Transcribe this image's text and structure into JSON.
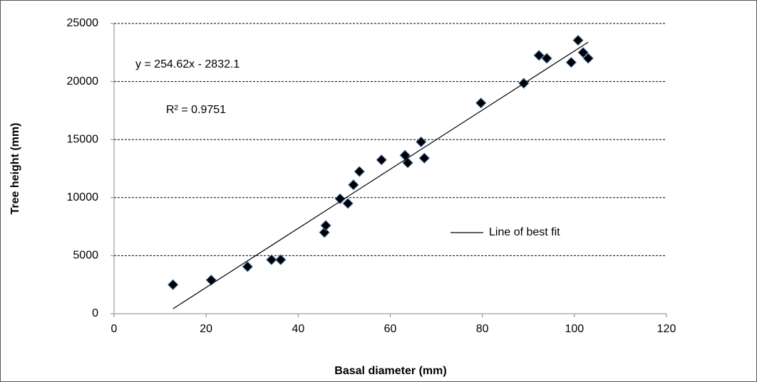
{
  "chart_data": {
    "type": "scatter",
    "xlabel": "Basal diameter (mm)",
    "ylabel": "Tree height (mm)",
    "annotations": [
      "y = 254.62x - 2832.1",
      "R² = 0.9751"
    ],
    "xlim": [
      0,
      120
    ],
    "xticks": [
      0,
      20,
      40,
      60,
      80,
      100,
      120
    ],
    "ylim": [
      0,
      25000
    ],
    "yticks": [
      0,
      5000,
      10000,
      15000,
      20000,
      25000
    ],
    "grid": true,
    "legend": "right",
    "series": [
      {
        "type": "scatter",
        "color": "#000000",
        "edge_color": "#4f81bd",
        "x": [
          12.8,
          21.1,
          29.0,
          34.2,
          36.2,
          45.7,
          46.0,
          49.1,
          50.8,
          52.0,
          53.3,
          58.1,
          63.2,
          63.8,
          66.7,
          67.4,
          79.7,
          89.0,
          92.3,
          94.0,
          99.3,
          100.8,
          101.9,
          103.0
        ],
        "values": [
          2500,
          2900,
          4050,
          4650,
          4650,
          7000,
          7600,
          9900,
          9500,
          11100,
          12250,
          13250,
          13650,
          13000,
          14800,
          13400,
          18150,
          19850,
          22250,
          22000,
          21650,
          23550,
          22500,
          22000
        ]
      },
      {
        "type": "line",
        "name": "Line of best fit",
        "color": "#000000",
        "x": [
          12.8,
          103.0
        ],
        "values": [
          427,
          23394
        ]
      }
    ]
  }
}
